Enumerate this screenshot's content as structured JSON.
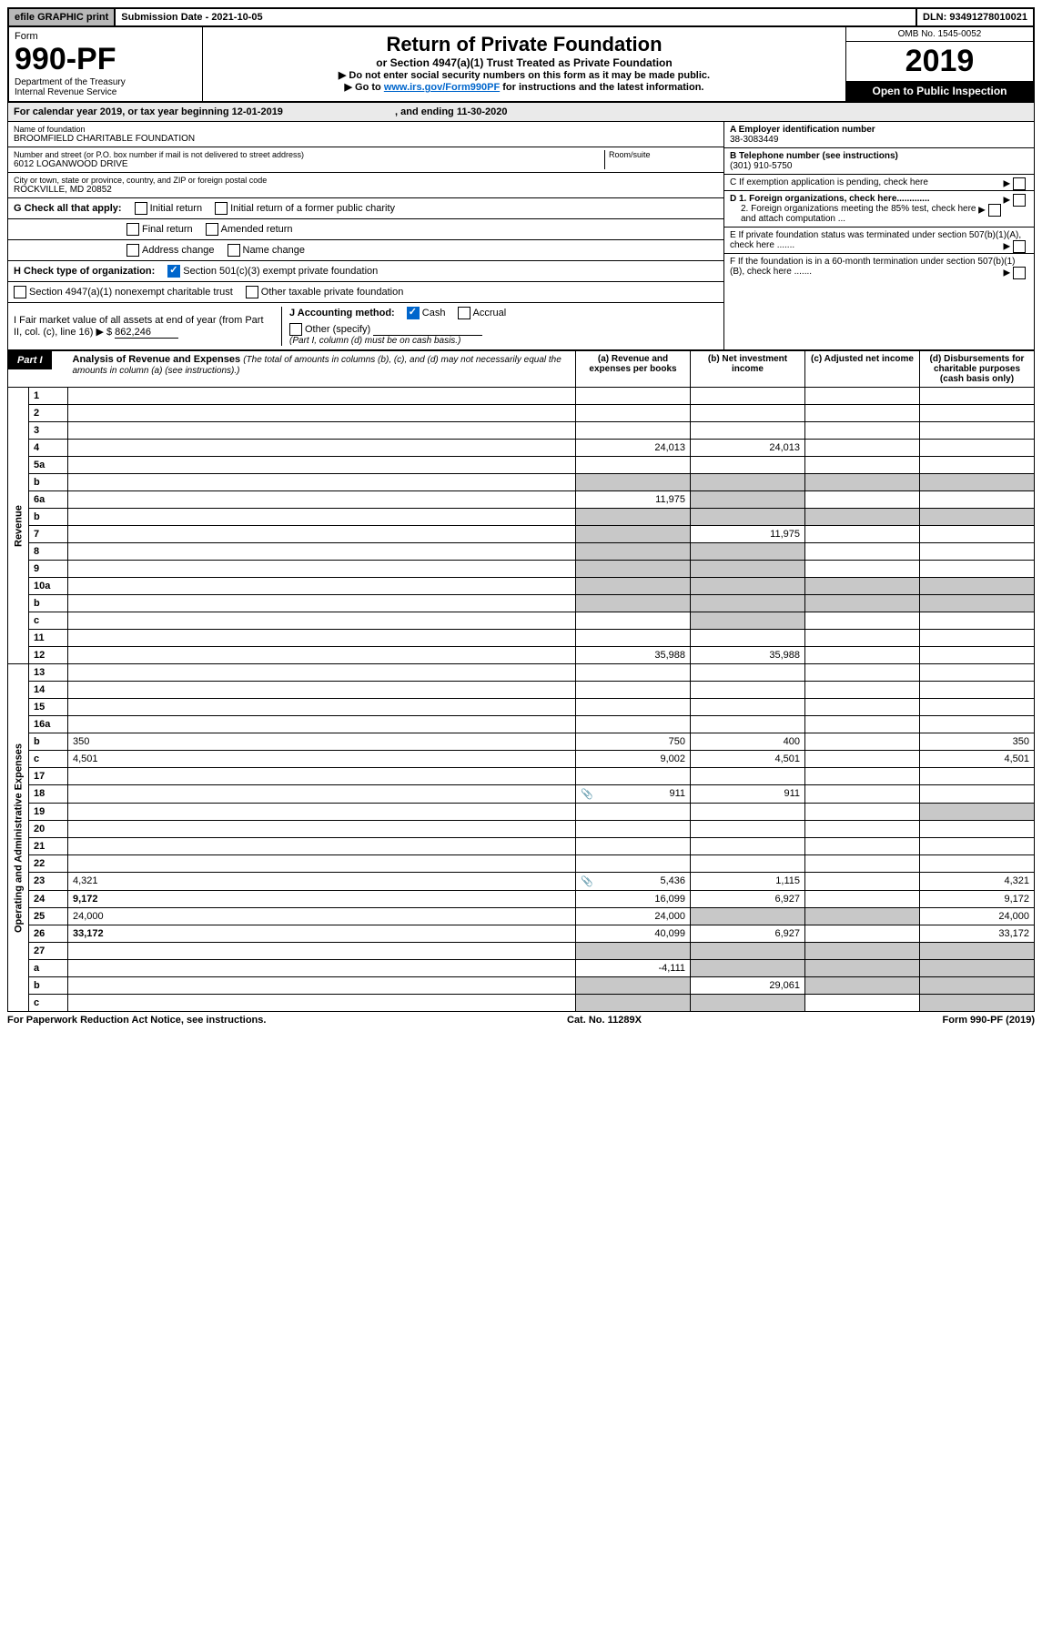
{
  "top": {
    "efile": "efile GRAPHIC print",
    "submission": "Submission Date - 2021-10-05",
    "dln": "DLN: 93491278010021"
  },
  "header": {
    "form": "Form",
    "form_num": "990-PF",
    "dept1": "Department of the Treasury",
    "dept2": "Internal Revenue Service",
    "title": "Return of Private Foundation",
    "sub1": "or Section 4947(a)(1) Trust Treated as Private Foundation",
    "note1": "▶ Do not enter social security numbers on this form as it may be made public.",
    "note2_pre": "▶ Go to ",
    "note2_link": "www.irs.gov/Form990PF",
    "note2_post": " for instructions and the latest information.",
    "omb": "OMB No. 1545-0052",
    "year": "2019",
    "inspect": "Open to Public Inspection"
  },
  "cal": {
    "prefix": "For calendar year 2019, or tax year beginning ",
    "begin": "12-01-2019",
    "mid": " , and ending ",
    "end": "11-30-2020"
  },
  "org": {
    "name_label": "Name of foundation",
    "name": "BROOMFIELD CHARITABLE FOUNDATION",
    "addr_label": "Number and street (or P.O. box number if mail is not delivered to street address)",
    "addr": "6012 LOGANWOOD DRIVE",
    "room_label": "Room/suite",
    "city_label": "City or town, state or province, country, and ZIP or foreign postal code",
    "city": "ROCKVILLE, MD  20852",
    "ein_label": "A Employer identification number",
    "ein": "38-3083449",
    "phone_label": "B Telephone number (see instructions)",
    "phone": "(301) 910-5750",
    "c_label": "C If exemption application is pending, check here",
    "d1_label": "D 1. Foreign organizations, check here.............",
    "d2_label": "2. Foreign organizations meeting the 85% test, check here and attach computation ...",
    "e_label": "E If private foundation status was terminated under section 507(b)(1)(A), check here .......",
    "f_label": "F If the foundation is in a 60-month termination under section 507(b)(1)(B), check here .......",
    "g_label": "G Check all that apply:",
    "g_opts": [
      "Initial return",
      "Initial return of a former public charity",
      "Final return",
      "Amended return",
      "Address change",
      "Name change"
    ],
    "h_label": "H Check type of organization:",
    "h_opts": [
      "Section 501(c)(3) exempt private foundation",
      "Section 4947(a)(1) nonexempt charitable trust",
      "Other taxable private foundation"
    ],
    "i_label": "I Fair market value of all assets at end of year (from Part II, col. (c), line 16) ▶ $",
    "i_val": "862,246",
    "j_label": "J Accounting method:",
    "j_opts": [
      "Cash",
      "Accrual"
    ],
    "j_other": "Other (specify)",
    "j_note": "(Part I, column (d) must be on cash basis.)"
  },
  "part1": {
    "label": "Part I",
    "title": "Analysis of Revenue and Expenses",
    "title_note": "(The total of amounts in columns (b), (c), and (d) may not necessarily equal the amounts in column (a) (see instructions).)",
    "col_a": "(a)   Revenue and expenses per books",
    "col_b": "(b)  Net investment income",
    "col_c": "(c)  Adjusted net income",
    "col_d": "(d)  Disbursements for charitable purposes (cash basis only)",
    "side_rev": "Revenue",
    "side_exp": "Operating and Administrative Expenses"
  },
  "rows": [
    {
      "n": "1",
      "d": "",
      "a": "",
      "b": "",
      "c": ""
    },
    {
      "n": "2",
      "d": "",
      "a": "",
      "b": "",
      "c": "",
      "noteDots": true
    },
    {
      "n": "3",
      "d": "",
      "a": "",
      "b": "",
      "c": ""
    },
    {
      "n": "4",
      "d": "",
      "a": "24,013",
      "b": "24,013",
      "c": ""
    },
    {
      "n": "5a",
      "d": "",
      "a": "",
      "b": "",
      "c": ""
    },
    {
      "n": "b",
      "d": "",
      "a": "",
      "b": "",
      "c": "",
      "shadeAll": true
    },
    {
      "n": "6a",
      "d": "",
      "a": "11,975",
      "b": "",
      "c": "",
      "bShade": true
    },
    {
      "n": "b",
      "d": "",
      "a": "",
      "b": "",
      "c": "",
      "shadeAll": true
    },
    {
      "n": "7",
      "d": "",
      "a": "",
      "b": "11,975",
      "c": "",
      "aShade": true
    },
    {
      "n": "8",
      "d": "",
      "a": "",
      "b": "",
      "c": "",
      "aShade": true,
      "bShade": true
    },
    {
      "n": "9",
      "d": "",
      "a": "",
      "b": "",
      "c": "",
      "aShade": true,
      "bShade": true
    },
    {
      "n": "10a",
      "d": "",
      "a": "",
      "b": "",
      "c": "",
      "shadeAll": true
    },
    {
      "n": "b",
      "d": "",
      "a": "",
      "b": "",
      "c": "",
      "shadeAll": true
    },
    {
      "n": "c",
      "d": "",
      "a": "",
      "b": "",
      "c": "",
      "bShade": true
    },
    {
      "n": "11",
      "d": "",
      "a": "",
      "b": "",
      "c": ""
    },
    {
      "n": "12",
      "d": "",
      "a": "35,988",
      "b": "35,988",
      "c": "",
      "bold": true
    }
  ],
  "exp_rows": [
    {
      "n": "13",
      "d": "",
      "a": "",
      "b": "",
      "c": ""
    },
    {
      "n": "14",
      "d": "",
      "a": "",
      "b": "",
      "c": ""
    },
    {
      "n": "15",
      "d": "",
      "a": "",
      "b": "",
      "c": ""
    },
    {
      "n": "16a",
      "d": "",
      "a": "",
      "b": "",
      "c": ""
    },
    {
      "n": "b",
      "d": "350",
      "a": "750",
      "b": "400",
      "c": ""
    },
    {
      "n": "c",
      "d": "4,501",
      "a": "9,002",
      "b": "4,501",
      "c": ""
    },
    {
      "n": "17",
      "d": "",
      "a": "",
      "b": "",
      "c": ""
    },
    {
      "n": "18",
      "d": "",
      "a": "911",
      "b": "911",
      "c": "",
      "icon": true
    },
    {
      "n": "19",
      "d": "",
      "a": "",
      "b": "",
      "c": "",
      "dShade": true
    },
    {
      "n": "20",
      "d": "",
      "a": "",
      "b": "",
      "c": ""
    },
    {
      "n": "21",
      "d": "",
      "a": "",
      "b": "",
      "c": ""
    },
    {
      "n": "22",
      "d": "",
      "a": "",
      "b": "",
      "c": ""
    },
    {
      "n": "23",
      "d": "4,321",
      "a": "5,436",
      "b": "1,115",
      "c": "",
      "icon": true
    },
    {
      "n": "24",
      "d": "9,172",
      "a": "16,099",
      "b": "6,927",
      "c": "",
      "bold": true
    },
    {
      "n": "25",
      "d": "24,000",
      "a": "24,000",
      "b": "",
      "c": "",
      "bShade": true,
      "cShade": true
    },
    {
      "n": "26",
      "d": "33,172",
      "a": "40,099",
      "b": "6,927",
      "c": "",
      "bold": true
    },
    {
      "n": "27",
      "d": "",
      "a": "",
      "b": "",
      "c": "",
      "shadeAll": true
    },
    {
      "n": "a",
      "d": "",
      "a": "-4,111",
      "b": "",
      "c": "",
      "bold": true,
      "bShade": true,
      "cShade": true,
      "dShade": true
    },
    {
      "n": "b",
      "d": "",
      "a": "",
      "b": "29,061",
      "c": "",
      "bold": true,
      "aShade": true,
      "cShade": true,
      "dShade": true
    },
    {
      "n": "c",
      "d": "",
      "a": "",
      "b": "",
      "c": "",
      "bold": true,
      "aShade": true,
      "bShade": true,
      "dShade": true
    }
  ],
  "footer": {
    "left": "For Paperwork Reduction Act Notice, see instructions.",
    "mid": "Cat. No. 11289X",
    "right": "Form 990-PF (2019)"
  }
}
